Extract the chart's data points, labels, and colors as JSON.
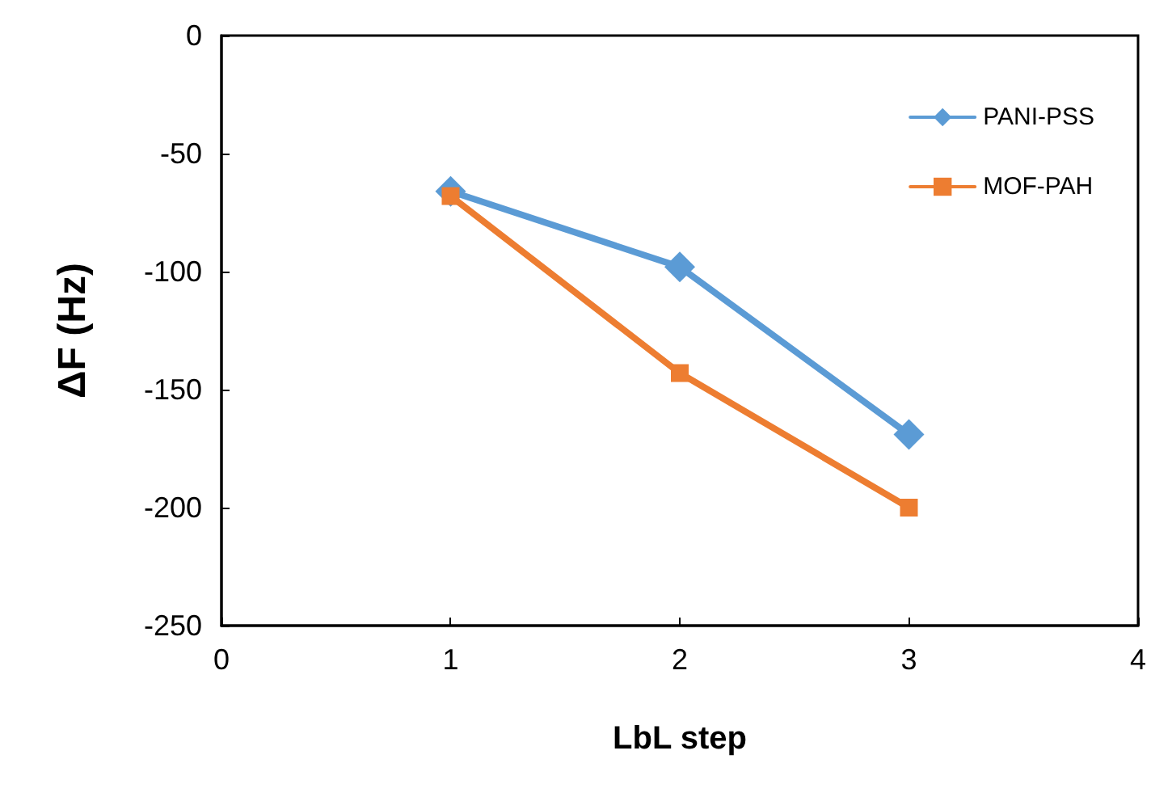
{
  "chart_data": {
    "type": "line",
    "xlabel": "LbL step",
    "ylabel": "ΔF (Hz)",
    "x": [
      1,
      2,
      3
    ],
    "series": [
      {
        "name": "PANI-PSS",
        "color": "#5b9bd5",
        "values": [
          -66,
          -98,
          -169
        ],
        "marker": "diamond"
      },
      {
        "name": "MOF-PAH",
        "color": "#ed7d31",
        "values": [
          -68,
          -143,
          -200
        ],
        "marker": "square"
      }
    ],
    "xlim": [
      0,
      4
    ],
    "xticks": [
      0,
      1,
      2,
      3,
      4
    ],
    "ylim": [
      -250,
      0
    ],
    "yticks": [
      -250,
      -200,
      -150,
      -100,
      -50,
      0
    ],
    "grid": false,
    "legend": "top right",
    "line_style": "solid"
  }
}
